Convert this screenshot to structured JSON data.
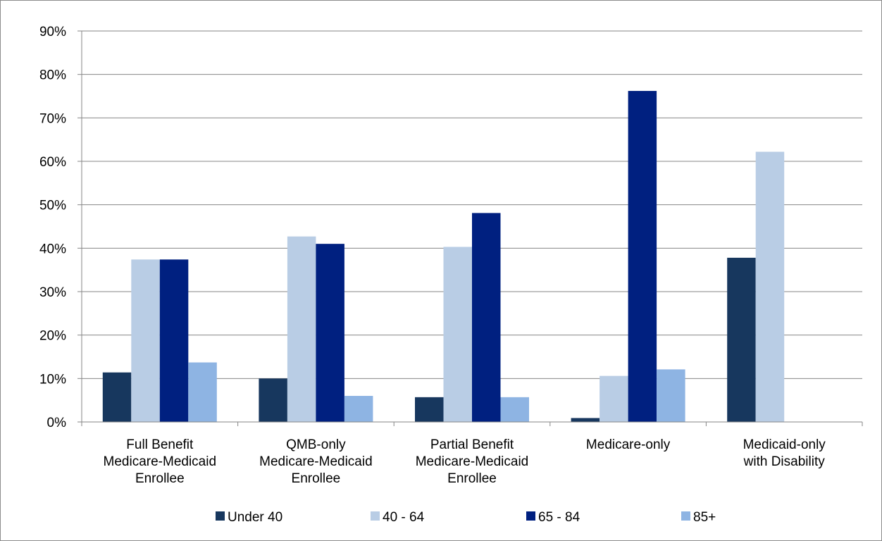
{
  "chart_data": {
    "type": "bar",
    "categories": [
      [
        "Full Benefit",
        "Medicare-Medicaid",
        "Enrollee"
      ],
      [
        "QMB-only",
        "Medicare-Medicaid",
        "Enrollee"
      ],
      [
        "Partial Benefit",
        "Medicare-Medicaid",
        "Enrollee"
      ],
      [
        "Medicare-only"
      ],
      [
        "Medicaid-only",
        "with Disability"
      ]
    ],
    "series": [
      {
        "name": "Under 40",
        "color": "#17375e",
        "values": [
          11.4,
          10.0,
          5.7,
          0.9,
          37.8
        ]
      },
      {
        "name": "40 - 64",
        "color": "#b9cde5",
        "values": [
          37.4,
          42.7,
          40.3,
          10.6,
          62.2
        ]
      },
      {
        "name": "65 - 84",
        "color": "#002080",
        "values": [
          37.4,
          41.0,
          48.1,
          76.2,
          0
        ]
      },
      {
        "name": "85+",
        "color": "#8eb4e3",
        "values": [
          13.7,
          6.0,
          5.7,
          12.1,
          0
        ]
      }
    ],
    "y_ticks": [
      "0%",
      "10%",
      "20%",
      "30%",
      "40%",
      "50%",
      "60%",
      "70%",
      "80%",
      "90%"
    ],
    "ylim": [
      0,
      90
    ],
    "grid": true,
    "legend_position": "bottom"
  }
}
